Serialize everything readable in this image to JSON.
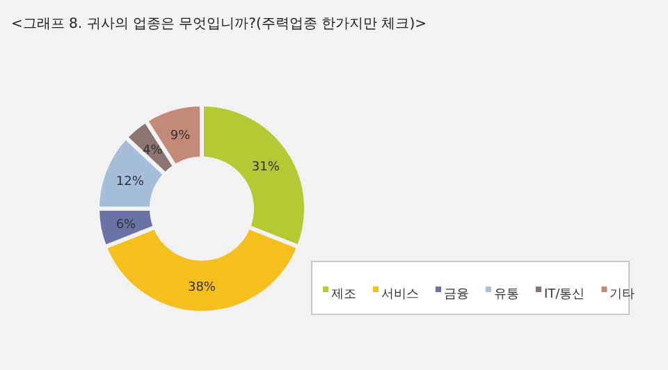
{
  "chart_data": {
    "type": "donut",
    "title": "<그래프 8. 귀사의 업종은 무엇입니까?(주력업종 한가지만 체크)>",
    "categories": [
      "제조",
      "서비스",
      "금융",
      "유통",
      "IT/통신",
      "기타"
    ],
    "values": [
      31,
      38,
      6,
      12,
      4,
      9
    ],
    "colors": [
      "#b5c934",
      "#f5bf1e",
      "#6a72a6",
      "#a5bfdb",
      "#8c7470",
      "#c48a78"
    ],
    "value_labels": [
      "31%",
      "38%",
      "6%",
      "12%",
      "4%",
      "9%"
    ],
    "legend": "bottom right"
  }
}
